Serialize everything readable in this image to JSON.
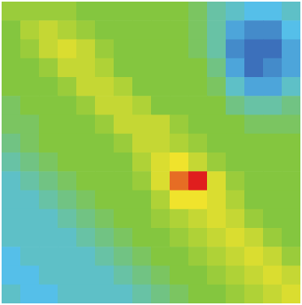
{
  "chart_data": {
    "type": "heatmap",
    "z": [
      [
        5.5,
        5.5,
        5.5,
        5.5,
        5,
        5,
        5,
        5,
        5,
        5,
        4.5,
        3.5,
        3,
        2.5,
        2.5,
        3
      ],
      [
        5,
        6,
        6.5,
        6,
        5.5,
        5,
        5,
        5,
        5,
        5,
        4.5,
        3.5,
        2,
        1.5,
        1.5,
        2.5
      ],
      [
        5,
        5.5,
        6.5,
        7,
        6.5,
        5.5,
        5,
        5,
        5,
        5,
        4.5,
        3.5,
        1.5,
        1,
        1,
        2
      ],
      [
        5,
        5,
        5.5,
        6.5,
        6.5,
        6,
        5,
        5,
        5,
        5,
        5,
        4,
        2,
        1,
        1.5,
        2
      ],
      [
        5,
        5,
        5,
        5.5,
        6.5,
        6.5,
        6,
        5,
        5,
        5,
        5,
        4.5,
        3,
        2,
        2,
        3
      ],
      [
        4.5,
        5,
        5,
        5,
        5.5,
        6.5,
        6.5,
        6,
        5,
        5,
        5,
        5,
        4,
        3.5,
        3.5,
        4
      ],
      [
        4.5,
        4.5,
        5,
        5,
        5,
        5.5,
        6.5,
        6.5,
        6.5,
        5.5,
        5,
        5,
        5,
        4.5,
        4.5,
        4.5
      ],
      [
        4,
        4.5,
        5,
        5,
        5,
        5,
        5.5,
        6.5,
        6.5,
        6,
        5.5,
        5,
        5,
        5,
        5,
        5
      ],
      [
        3.5,
        4,
        4.5,
        5,
        5,
        5,
        5,
        6,
        7,
        7.5,
        6.5,
        5.5,
        5,
        5,
        5,
        5
      ],
      [
        3,
        3.5,
        4,
        4.5,
        5,
        5,
        5,
        5.5,
        7,
        9,
        10,
        7,
        5.5,
        5,
        5,
        5
      ],
      [
        3,
        3,
        3.5,
        4,
        4.5,
        5,
        5,
        5,
        6,
        7.5,
        7.5,
        7,
        6,
        5,
        5,
        5
      ],
      [
        3,
        3,
        3,
        3.5,
        4,
        4.5,
        5,
        5,
        5.5,
        6,
        6.5,
        7,
        6.5,
        5.5,
        5,
        5
      ],
      [
        3,
        3,
        3,
        3,
        3.5,
        4,
        4.5,
        5,
        5,
        5.5,
        6,
        6.5,
        7,
        6.5,
        5.5,
        5
      ],
      [
        2.5,
        3,
        3,
        3,
        3,
        3.5,
        4,
        4.5,
        5,
        5,
        5.5,
        6,
        6.5,
        7,
        6.5,
        5.5
      ],
      [
        2.5,
        2.5,
        3,
        3,
        3,
        3,
        3.5,
        4,
        4.5,
        5,
        5,
        5.5,
        6,
        6.5,
        7,
        6.5
      ],
      [
        3,
        2.5,
        2.5,
        3,
        3,
        3,
        3,
        3.5,
        4,
        4.5,
        5,
        5,
        5.5,
        6,
        6.5,
        7
      ]
    ],
    "zlim": [
      0,
      10
    ],
    "tick_labels": false
  }
}
